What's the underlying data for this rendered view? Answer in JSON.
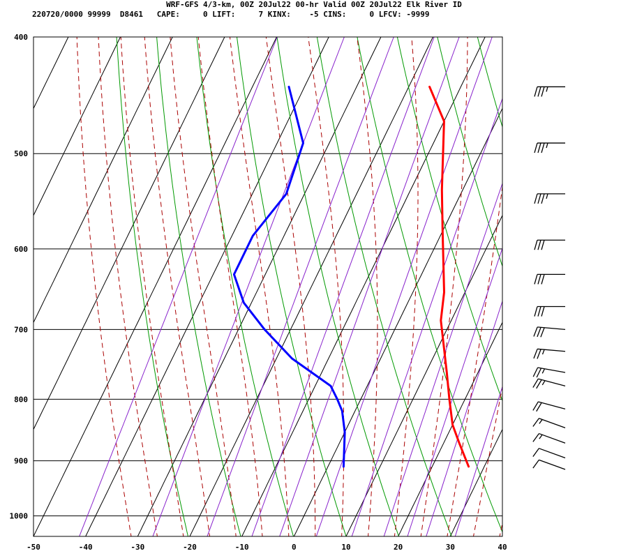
{
  "header": {
    "line1": "WRF-GFS 4/3-km, 00Z 20Jul22 00-hr Valid 00Z 20Jul22 Elk River ID",
    "line2": "220720/0000 99999  D8461   CAPE:     0 LIFT:     7 KINX:    -5 CINS:     0 LFCV: -9999"
  },
  "chart_data": {
    "type": "line",
    "title": "WRF-GFS 4/3-km, 00Z 20Jul22 00-hr Valid 00Z 20Jul22 Elk River ID",
    "xlabel": "",
    "ylabel": "",
    "x_ticks": [
      "-50",
      "-40",
      "-30",
      "-20",
      "-10",
      "0",
      "10",
      "20",
      "30",
      "40"
    ],
    "y_ticks": [
      "400",
      "500",
      "600",
      "700",
      "800",
      "900",
      "1000"
    ],
    "xlim": [
      -50,
      40
    ],
    "ylim": [
      400,
      1040
    ],
    "y_scale": "log, inverted (pressure)",
    "grid": true,
    "series": [
      {
        "color": "#ff0000",
        "points": [
          [
            -16,
            440
          ],
          [
            -10,
            470
          ],
          [
            -4,
            536
          ],
          [
            0,
            580
          ],
          [
            6,
            652
          ],
          [
            8,
            688
          ],
          [
            14,
            760
          ],
          [
            17,
            800
          ],
          [
            20,
            840
          ],
          [
            23,
            870
          ],
          [
            27,
            910
          ]
        ]
      },
      {
        "color": "#0000ff",
        "points": [
          [
            -43,
            440
          ],
          [
            -35,
            490
          ],
          [
            -33.5,
            540
          ],
          [
            -36,
            585
          ],
          [
            -36,
            630
          ],
          [
            -31.5,
            665
          ],
          [
            -25,
            700
          ],
          [
            -17,
            740
          ],
          [
            -7,
            780
          ],
          [
            -4.5,
            800
          ],
          [
            -2.5,
            818
          ],
          [
            0,
            852
          ],
          [
            3,
            910
          ]
        ]
      }
    ],
    "background_lines": {
      "isotherm_color": "#000000",
      "dry_adiabat_color": "#009900",
      "moist_adiabat_color": "#aa0000",
      "mixing_ratio_color": "#8822cc"
    },
    "wind_barbs": [
      {
        "pressure": 440,
        "direction_deg": 270,
        "speed_kt": 35
      },
      {
        "pressure": 490,
        "direction_deg": 270,
        "speed_kt": 35
      },
      {
        "pressure": 540,
        "direction_deg": 270,
        "speed_kt": 35
      },
      {
        "pressure": 590,
        "direction_deg": 270,
        "speed_kt": 30
      },
      {
        "pressure": 630,
        "direction_deg": 270,
        "speed_kt": 30
      },
      {
        "pressure": 670,
        "direction_deg": 270,
        "speed_kt": 30
      },
      {
        "pressure": 700,
        "direction_deg": 275,
        "speed_kt": 30
      },
      {
        "pressure": 730,
        "direction_deg": 275,
        "speed_kt": 25
      },
      {
        "pressure": 760,
        "direction_deg": 280,
        "speed_kt": 25
      },
      {
        "pressure": 780,
        "direction_deg": 285,
        "speed_kt": 25
      },
      {
        "pressure": 815,
        "direction_deg": 285,
        "speed_kt": 20
      },
      {
        "pressure": 845,
        "direction_deg": 290,
        "speed_kt": 15
      },
      {
        "pressure": 870,
        "direction_deg": 290,
        "speed_kt": 15
      },
      {
        "pressure": 895,
        "direction_deg": 290,
        "speed_kt": 10
      },
      {
        "pressure": 915,
        "direction_deg": 290,
        "speed_kt": 10
      }
    ]
  }
}
